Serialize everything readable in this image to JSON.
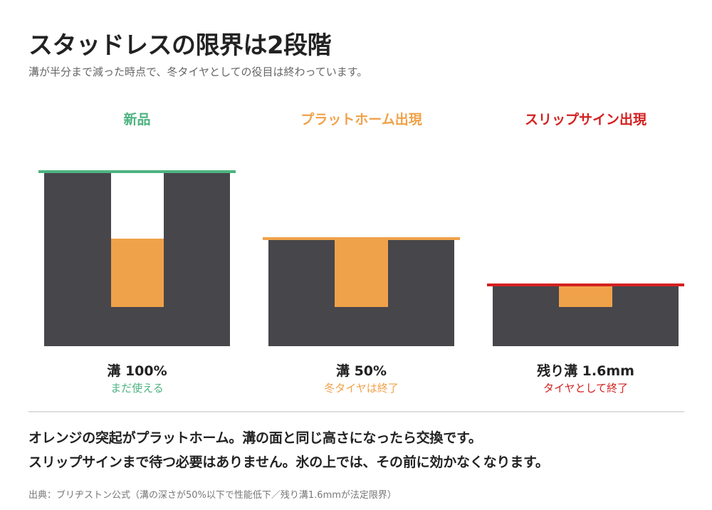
{
  "header": {
    "title": "スタッドレスの限界は2段階",
    "subtitle": "溝が半分まで減った時点で、冬タイヤとしての役目は終わっています。"
  },
  "colors": {
    "new": "#4db380",
    "platform": "#f0a24a",
    "slip": "#d42020",
    "tread": "#47464b"
  },
  "stages": [
    {
      "heading": "新品",
      "caption": "溝 100%",
      "status": "まだ使える"
    },
    {
      "heading": "プラットホーム出現",
      "caption": "溝 50%",
      "status": "冬タイヤは終了"
    },
    {
      "heading": "スリップサイン出現",
      "caption": "残り溝 1.6mm",
      "status": "タイヤとして終了"
    }
  ],
  "message": {
    "line1": "オレンジの突起がプラットホーム。溝の面と同じ高さになったら交換です。",
    "line2": "スリップサインまで待つ必要はありません。氷の上では、その前に効かなくなります。"
  },
  "source": "出典：ブリヂストン公式（溝の深さが50%以下で性能低下／残り溝1.6mmが法定限界）"
}
